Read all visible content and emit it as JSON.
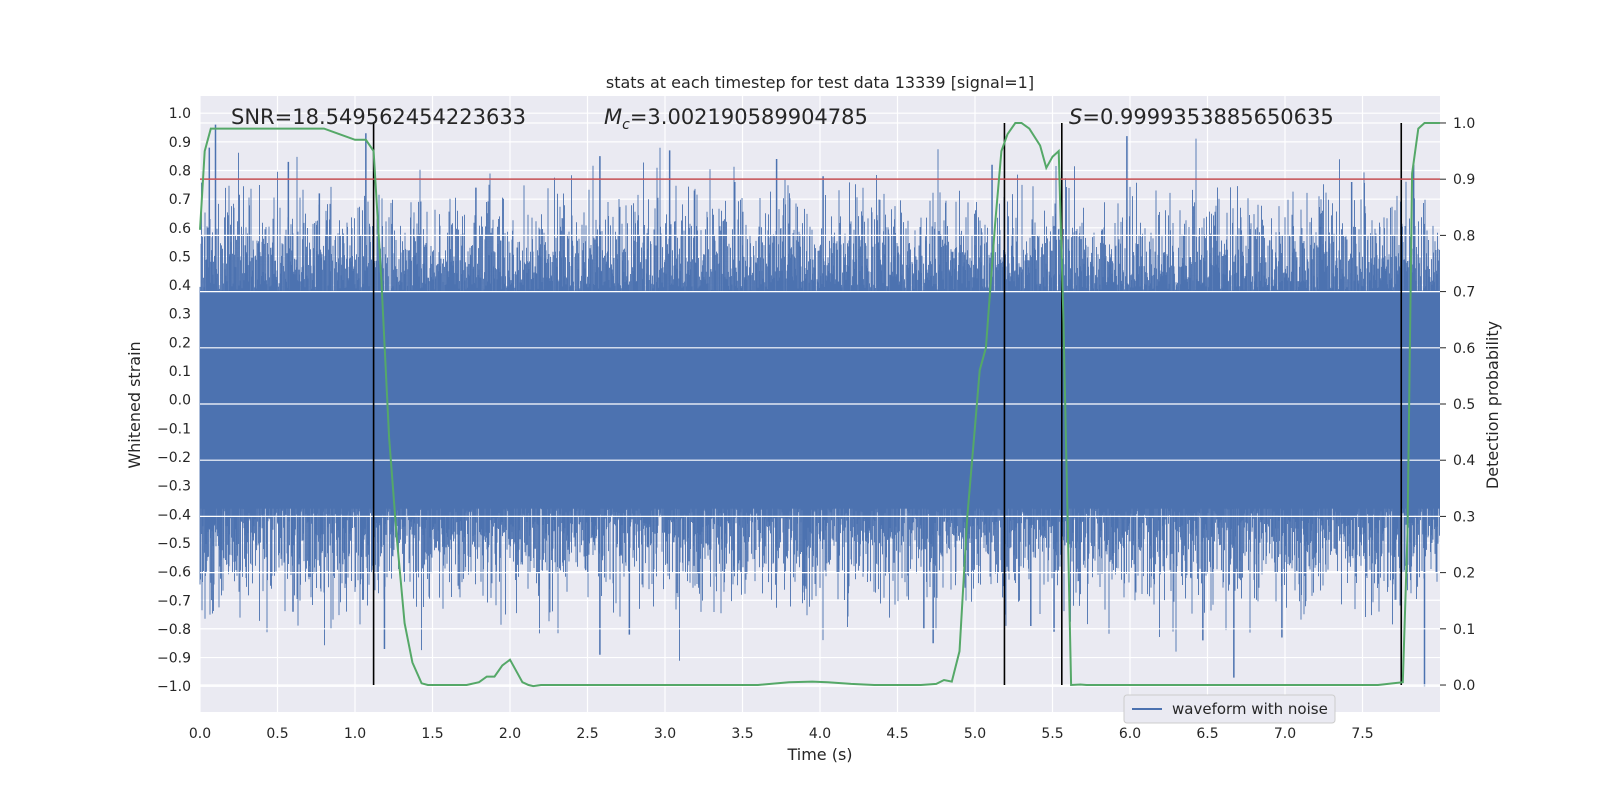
{
  "chart_data": {
    "type": "line",
    "title": "stats at each timestep for test data 13339 [signal=1]",
    "xlabel": "Time (s)",
    "ylabel": "Whitened strain",
    "y2label": "Detection probability",
    "xlim": [
      0.0,
      8.0
    ],
    "ylim": [
      -1.09,
      1.06
    ],
    "y2lim": [
      -0.048,
      1.048
    ],
    "xticks": [
      "0.0",
      "0.5",
      "1.0",
      "1.5",
      "2.0",
      "2.5",
      "3.0",
      "3.5",
      "4.0",
      "4.5",
      "5.0",
      "5.5",
      "6.0",
      "6.5",
      "7.0",
      "7.5"
    ],
    "xtick_values": [
      0.0,
      0.5,
      1.0,
      1.5,
      2.0,
      2.5,
      3.0,
      3.5,
      4.0,
      4.5,
      5.0,
      5.5,
      6.0,
      6.5,
      7.0,
      7.5
    ],
    "yticks": [
      "−1.0",
      "−0.9",
      "−0.8",
      "−0.7",
      "−0.6",
      "−0.5",
      "−0.4",
      "−0.3",
      "−0.2",
      "−0.1",
      "0.0",
      "0.1",
      "0.2",
      "0.3",
      "0.4",
      "0.5",
      "0.6",
      "0.7",
      "0.8",
      "0.9",
      "1.0"
    ],
    "ytick_values": [
      -1.0,
      -0.9,
      -0.8,
      -0.7,
      -0.6,
      -0.5,
      -0.4,
      -0.3,
      -0.2,
      -0.1,
      0.0,
      0.1,
      0.2,
      0.3,
      0.4,
      0.5,
      0.6,
      0.7,
      0.8,
      0.9,
      1.0
    ],
    "y2ticks": [
      "0.0",
      "0.1",
      "0.2",
      "0.3",
      "0.4",
      "0.5",
      "0.6",
      "0.7",
      "0.8",
      "0.9",
      "1.0"
    ],
    "y2tick_values": [
      0.0,
      0.1,
      0.2,
      0.3,
      0.4,
      0.5,
      0.6,
      0.7,
      0.8,
      0.9,
      1.0
    ],
    "annotations": {
      "snr": "SNR=18.549562454223633",
      "mc_symbol": "M",
      "mc_subscript": "c",
      "mc_value": "=3.002190589904785",
      "s_symbol": "S",
      "s_value": "=0.9999353885650635"
    },
    "threshold": {
      "value": 0.9,
      "axis": "y2",
      "color": "#c44e52"
    },
    "event_lines_x": [
      1.12,
      5.19,
      5.56,
      7.75
    ],
    "legend": {
      "label": "waveform with noise",
      "color": "#4c72b0",
      "placement": "lower-right"
    },
    "series": [
      {
        "name": "waveform with noise",
        "axis": "y",
        "color": "#4c72b0",
        "kind": "noise",
        "core_amplitude": 0.38,
        "typical_envelope": [
          -0.55,
          0.62
        ],
        "spikes": [
          {
            "x": 0.06,
            "y": 0.88
          },
          {
            "x": 0.1,
            "y": 0.96
          },
          {
            "x": 0.57,
            "y": 0.83
          },
          {
            "x": 0.6,
            "y": -0.74
          },
          {
            "x": 0.77,
            "y": 0.72
          },
          {
            "x": 1.07,
            "y": 0.93
          },
          {
            "x": 1.19,
            "y": -0.87
          },
          {
            "x": 1.78,
            "y": 0.74
          },
          {
            "x": 2.58,
            "y": -0.89
          },
          {
            "x": 2.58,
            "y": 0.85
          },
          {
            "x": 2.77,
            "y": -0.82
          },
          {
            "x": 3.03,
            "y": 0.87
          },
          {
            "x": 3.19,
            "y": 0.73
          },
          {
            "x": 3.45,
            "y": 0.76
          },
          {
            "x": 3.72,
            "y": 0.84
          },
          {
            "x": 4.02,
            "y": 0.78
          },
          {
            "x": 4.67,
            "y": -0.8
          },
          {
            "x": 4.73,
            "y": -0.85
          },
          {
            "x": 5.11,
            "y": 0.82
          },
          {
            "x": 5.36,
            "y": -0.79
          },
          {
            "x": 5.51,
            "y": -0.81
          },
          {
            "x": 5.98,
            "y": 0.92
          },
          {
            "x": 6.47,
            "y": -0.84
          },
          {
            "x": 6.67,
            "y": -0.97
          },
          {
            "x": 6.98,
            "y": -0.83
          },
          {
            "x": 7.43,
            "y": 0.76
          },
          {
            "x": 7.83,
            "y": 0.82
          },
          {
            "x": 7.9,
            "y": -1.0
          }
        ]
      },
      {
        "name": "detection probability",
        "axis": "y2",
        "color": "#55a868",
        "x": [
          0.0,
          0.03,
          0.07,
          0.1,
          0.15,
          0.3,
          0.5,
          0.65,
          0.8,
          0.9,
          1.0,
          1.07,
          1.12,
          1.17,
          1.22,
          1.27,
          1.32,
          1.37,
          1.43,
          1.47,
          1.55,
          1.65,
          1.72,
          1.8,
          1.85,
          1.9,
          1.95,
          2.0,
          2.05,
          2.08,
          2.12,
          2.15,
          2.2,
          2.25,
          2.3,
          2.35,
          2.45,
          2.55,
          2.65,
          2.8,
          3.0,
          3.2,
          3.4,
          3.6,
          3.8,
          3.95,
          4.05,
          4.2,
          4.35,
          4.5,
          4.65,
          4.75,
          4.8,
          4.85,
          4.9,
          4.95,
          5.0,
          5.03,
          5.07,
          5.13,
          5.17,
          5.21,
          5.26,
          5.3,
          5.35,
          5.42,
          5.46,
          5.5,
          5.54,
          5.57,
          5.62,
          5.68,
          5.72,
          5.78,
          5.85,
          6.0,
          6.2,
          6.4,
          6.5,
          6.6,
          6.8,
          7.0,
          7.2,
          7.4,
          7.5,
          7.6,
          7.7,
          7.76,
          7.79,
          7.82,
          7.86,
          7.9,
          7.95,
          8.0
        ],
        "y": [
          0.81,
          0.95,
          0.99,
          0.99,
          0.99,
          0.99,
          0.99,
          0.99,
          0.99,
          0.98,
          0.97,
          0.97,
          0.95,
          0.72,
          0.44,
          0.26,
          0.11,
          0.04,
          0.003,
          0.0,
          0.0,
          0.0,
          0.0,
          0.005,
          0.015,
          0.015,
          0.035,
          0.045,
          0.02,
          0.005,
          0.0,
          -0.002,
          0.0,
          0.0,
          0.0,
          0.0,
          0.0,
          0.0,
          0.0,
          0.0,
          0.0,
          0.0,
          0.0,
          0.0,
          0.005,
          0.006,
          0.005,
          0.002,
          0.0,
          0.0,
          0.0,
          0.002,
          0.009,
          0.006,
          0.06,
          0.3,
          0.46,
          0.56,
          0.6,
          0.82,
          0.95,
          0.98,
          1.0,
          1.0,
          0.99,
          0.96,
          0.92,
          0.94,
          0.95,
          0.66,
          0.0,
          0.001,
          0.0,
          0.0,
          0.0,
          0.0,
          0.0,
          0.0,
          0.0,
          0.0,
          0.0,
          0.0,
          0.0,
          0.0,
          0.0,
          0.0,
          0.003,
          0.005,
          0.27,
          0.91,
          0.99,
          1.0,
          1.0,
          1.0
        ]
      }
    ]
  }
}
